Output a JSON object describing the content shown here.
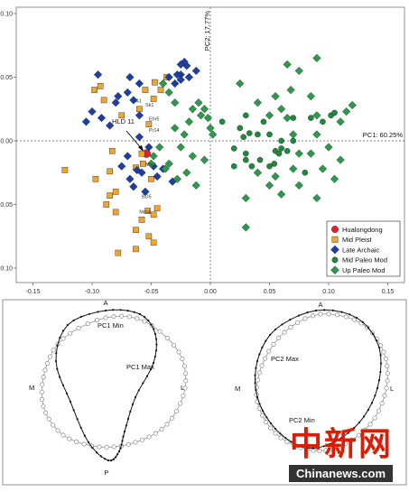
{
  "chart_data": [
    {
      "type": "scatter",
      "title": "",
      "xlabel": "PC1: 60.25%",
      "ylabel": "PC2: 17.77%",
      "xlim": [
        -0.16,
        0.16
      ],
      "ylim": [
        -0.105,
        0.105
      ],
      "x_ticks": [
        "-0.15",
        "-0.10",
        "-0.05",
        "0.00",
        "0.05",
        "0.10",
        "0.15"
      ],
      "y_ticks": [
        "0.10",
        "0.05",
        "0.00",
        "0.05",
        "0.10"
      ],
      "legend_position": "bottom-right",
      "legend": [
        "Hualongdong",
        "Mid Pleist",
        "Late Archaic",
        "Mid Paleo Mod",
        "Up Paleo Mod"
      ],
      "annotation": "HLD 11",
      "specimen_labels": [
        "BA1",
        "Sk1",
        "Ehr5",
        "Pr14",
        "Mis2",
        "BD5",
        "Mm4"
      ],
      "series": [
        {
          "name": "Hualongdong",
          "color": "#e4202a",
          "marker": "circle",
          "points": [
            [
              -0.054,
              -0.01
            ]
          ]
        },
        {
          "name": "Mid Pleist",
          "color": "#f0a531",
          "marker": "square",
          "points": [
            [
              -0.123,
              -0.023
            ],
            [
              -0.08,
              -0.04
            ],
            [
              -0.085,
              -0.043
            ],
            [
              -0.088,
              -0.05
            ],
            [
              -0.08,
              -0.056
            ],
            [
              -0.097,
              -0.03
            ],
            [
              -0.085,
              -0.024
            ],
            [
              -0.083,
              -0.008
            ],
            [
              -0.058,
              -0.01
            ],
            [
              -0.057,
              -0.018
            ],
            [
              -0.063,
              -0.021
            ],
            [
              -0.055,
              0.04
            ],
            [
              -0.042,
              0.04
            ],
            [
              -0.06,
              0.025
            ],
            [
              -0.075,
              0.02
            ],
            [
              -0.052,
              0.013
            ],
            [
              -0.048,
              0.033
            ],
            [
              -0.09,
              0.032
            ],
            [
              -0.098,
              0.04
            ],
            [
              -0.093,
              0.043
            ],
            [
              -0.047,
              0.046
            ],
            [
              -0.037,
              0.05
            ],
            [
              -0.05,
              -0.03
            ],
            [
              -0.053,
              -0.055
            ],
            [
              -0.045,
              -0.053
            ],
            [
              -0.048,
              -0.058
            ],
            [
              -0.052,
              -0.075
            ],
            [
              -0.063,
              -0.07
            ],
            [
              -0.058,
              -0.062
            ],
            [
              -0.078,
              -0.088
            ],
            [
              -0.048,
              -0.08
            ],
            [
              -0.063,
              -0.085
            ]
          ]
        },
        {
          "name": "Late Archaic",
          "color": "#1d3fa5",
          "marker": "diamond",
          "points": [
            [
              -0.095,
              0.052
            ],
            [
              -0.068,
              0.05
            ],
            [
              -0.06,
              0.045
            ],
            [
              -0.08,
              0.03
            ],
            [
              -0.092,
              0.018
            ],
            [
              -0.1,
              0.023
            ],
            [
              -0.105,
              0.015
            ],
            [
              -0.085,
              0.012
            ],
            [
              -0.065,
              0.032
            ],
            [
              -0.07,
              0.038
            ],
            [
              -0.078,
              0.035
            ],
            [
              -0.06,
              0.02
            ],
            [
              -0.02,
              0.059
            ],
            [
              -0.025,
              0.052
            ],
            [
              -0.028,
              0.052
            ],
            [
              -0.022,
              0.062
            ],
            [
              -0.025,
              0.06
            ],
            [
              -0.018,
              0.05
            ],
            [
              -0.03,
              0.045
            ],
            [
              -0.035,
              0.05
            ],
            [
              -0.012,
              0.055
            ],
            [
              -0.025,
              0.048
            ],
            [
              -0.06,
              0.003
            ],
            [
              -0.052,
              -0.005
            ],
            [
              -0.058,
              -0.025
            ],
            [
              -0.062,
              -0.023
            ],
            [
              -0.07,
              -0.012
            ],
            [
              -0.068,
              -0.03
            ],
            [
              -0.075,
              -0.02
            ],
            [
              -0.048,
              -0.02
            ],
            [
              -0.04,
              -0.022
            ],
            [
              -0.045,
              -0.028
            ],
            [
              -0.032,
              -0.032
            ],
            [
              -0.055,
              -0.04
            ],
            [
              -0.065,
              -0.036
            ]
          ]
        },
        {
          "name": "Mid Paleo Mod",
          "color": "#1f8a3e",
          "marker": "circle",
          "points": [
            [
              0.01,
              0.015
            ],
            [
              0.02,
              -0.006
            ],
            [
              0.025,
              0.01
            ],
            [
              0.028,
              0.003
            ],
            [
              0.03,
              -0.01
            ],
            [
              0.045,
              0.015
            ],
            [
              0.05,
              0.005
            ],
            [
              0.055,
              -0.008
            ],
            [
              0.06,
              0.0
            ],
            [
              0.07,
              0.018
            ],
            [
              0.08,
              -0.025
            ],
            [
              0.085,
              0.018
            ],
            [
              0.095,
              0.015
            ],
            [
              0.102,
              0.02
            ],
            [
              0.105,
              0.022
            ],
            [
              0.035,
              -0.02
            ],
            [
              0.03,
              -0.015
            ],
            [
              0.02,
              -0.02
            ],
            [
              0.03,
              0.02
            ],
            [
              0.033,
              0.006
            ],
            [
              0.04,
              0.005
            ],
            [
              0.042,
              -0.015
            ],
            [
              0.05,
              -0.02
            ],
            [
              0.054,
              -0.018
            ],
            [
              0.058,
              -0.01
            ],
            [
              0.06,
              -0.006
            ],
            [
              0.065,
              -0.008
            ],
            [
              0.07,
              0.0
            ]
          ]
        },
        {
          "name": "Up Paleo Mod",
          "color": "#2c9a4b",
          "marker": "diamond",
          "points": [
            [
              -0.043,
              -0.005
            ],
            [
              -0.035,
              -0.018
            ],
            [
              -0.028,
              -0.03
            ],
            [
              -0.05,
              -0.018
            ],
            [
              -0.048,
              -0.012
            ],
            [
              -0.038,
              -0.022
            ],
            [
              -0.02,
              -0.025
            ],
            [
              -0.015,
              -0.012
            ],
            [
              -0.012,
              -0.035
            ],
            [
              -0.005,
              -0.015
            ],
            [
              0.0,
              0.01
            ],
            [
              0.002,
              0.005
            ],
            [
              -0.03,
              0.03
            ],
            [
              -0.03,
              0.01
            ],
            [
              -0.025,
              -0.005
            ],
            [
              -0.022,
              0.005
            ],
            [
              -0.018,
              0.015
            ],
            [
              -0.015,
              0.025
            ],
            [
              -0.01,
              0.03
            ],
            [
              -0.005,
              0.025
            ],
            [
              -0.008,
              0.02
            ],
            [
              -0.002,
              0.018
            ],
            [
              -0.035,
              0.038
            ],
            [
              -0.04,
              0.045
            ],
            [
              0.025,
              0.045
            ],
            [
              0.04,
              0.03
            ],
            [
              0.055,
              0.035
            ],
            [
              0.068,
              0.04
            ],
            [
              0.085,
              0.035
            ],
            [
              0.09,
              0.02
            ],
            [
              0.12,
              0.028
            ],
            [
              0.11,
              0.015
            ],
            [
              0.065,
              0.018
            ],
            [
              0.05,
              0.02
            ],
            [
              0.06,
              0.025
            ],
            [
              0.09,
              0.005
            ],
            [
              0.1,
              -0.005
            ],
            [
              0.095,
              -0.022
            ],
            [
              0.105,
              -0.03
            ],
            [
              0.11,
              -0.015
            ],
            [
              0.075,
              -0.01
            ],
            [
              0.07,
              -0.022
            ],
            [
              0.055,
              -0.028
            ],
            [
              0.04,
              -0.025
            ],
            [
              0.085,
              -0.01
            ],
            [
              0.09,
              -0.045
            ],
            [
              0.075,
              -0.035
            ],
            [
              0.03,
              -0.045
            ],
            [
              0.06,
              -0.042
            ],
            [
              0.05,
              -0.035
            ],
            [
              0.03,
              -0.068
            ],
            [
              0.065,
              0.06
            ],
            [
              0.09,
              0.065
            ],
            [
              0.075,
              0.055
            ],
            [
              0.115,
              0.023
            ],
            [
              0.07,
              0.005
            ]
          ]
        }
      ]
    },
    {
      "type": "line",
      "title": "",
      "description_labels": [
        "A",
        "M",
        "L",
        "P"
      ],
      "left_outline": {
        "labels": {
          "top": "A",
          "left": "M",
          "right": "L",
          "bottom": "P"
        },
        "min_label": "PC1 Min",
        "max_label": "PC1 Max"
      },
      "right_outline": {
        "labels": {
          "top": "A",
          "left": "M",
          "right": "L"
        },
        "min_label": "PC2 Min",
        "max_label": "PC2 Max"
      }
    }
  ],
  "watermark": {
    "cn": "中新网",
    "en": "Chinanews.com"
  }
}
